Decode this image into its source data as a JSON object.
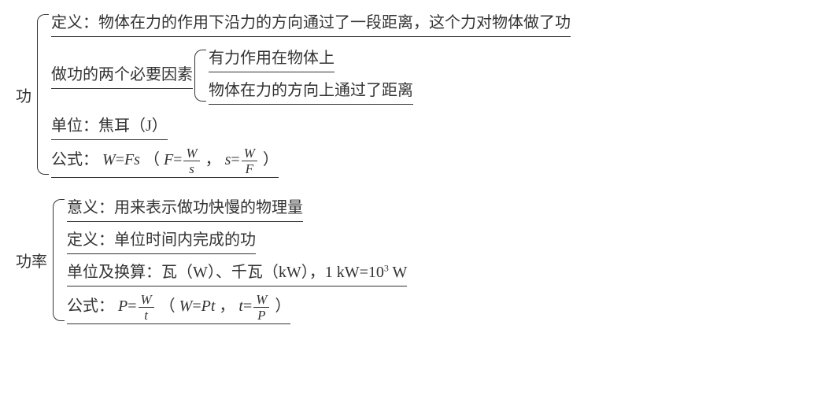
{
  "text_color": "#333333",
  "background_color": "#ffffff",
  "underline_color": "#333333",
  "font_family": "SimSun, serif",
  "font_size_pt": 20,
  "concept1": {
    "label": "功",
    "items": {
      "definition": "定义：物体在力的作用下沿力的方向通过了一段距离，这个力对物体做了功",
      "factors": {
        "label": "做功的两个必要因素",
        "sub1": "有力作用在物体上",
        "sub2": "物体在力的方向上通过了距离"
      },
      "unit": "单位：焦耳（J）",
      "formula_prefix": "公式：",
      "formula": {
        "main_lhs": "W",
        "main_eq": "=",
        "main_rhs": "Fs",
        "paren_open": "（",
        "f_lhs": "F",
        "f_eq": "=",
        "f_num": "W",
        "f_den": "s",
        "comma": "，",
        "s_lhs": "s",
        "s_eq": "=",
        "s_num": "W",
        "s_den": "F",
        "paren_close": "）"
      }
    }
  },
  "concept2": {
    "label": "功率",
    "items": {
      "meaning": "意义：用来表示做功快慢的物理量",
      "definition": "定义：单位时间内完成的功",
      "unit_prefix": "单位及换算：瓦（W）、千瓦（kW），1 kW=10",
      "unit_sup": "3",
      "unit_suffix": " W",
      "formula_prefix": "公式：",
      "formula": {
        "p_lhs": "P",
        "p_eq": "=",
        "p_num": "W",
        "p_den": "t",
        "paren_open": "（",
        "w_lhs": "W",
        "w_eq": "=",
        "w_rhs": "Pt",
        "comma": "，",
        "t_lhs": "t",
        "t_eq": "=",
        "t_num": "W",
        "t_den": "P",
        "paren_close": "）"
      }
    }
  }
}
